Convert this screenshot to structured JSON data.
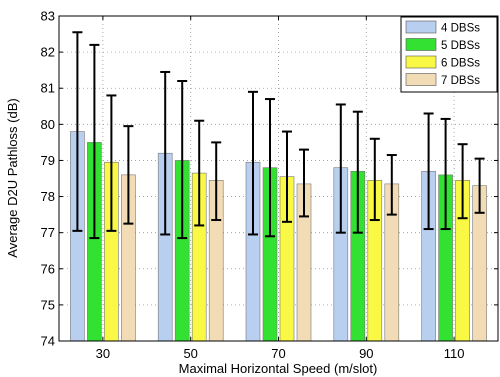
{
  "chart_data": {
    "type": "bar",
    "title": "",
    "xlabel": "Maximal Horizontal Speed (m/slot)",
    "ylabel": "Average D2U Pathloss (dB)",
    "categories": [
      "30",
      "50",
      "70",
      "90",
      "110"
    ],
    "ylim": [
      74,
      83
    ],
    "yticks": [
      74,
      75,
      76,
      77,
      78,
      79,
      80,
      81,
      82,
      83
    ],
    "grid": true,
    "legend_position": "top-right",
    "series": [
      {
        "name": "4 DBSs",
        "color": "#b9cff0",
        "values": [
          79.8,
          79.2,
          78.95,
          78.8,
          78.7
        ],
        "error_low": [
          77.05,
          76.95,
          76.95,
          77.0,
          77.1
        ],
        "error_high": [
          82.55,
          81.45,
          80.9,
          80.55,
          80.3
        ]
      },
      {
        "name": "5 DBSs",
        "color": "#33e133",
        "values": [
          79.5,
          79.0,
          78.8,
          78.7,
          78.6
        ],
        "error_low": [
          76.85,
          76.85,
          76.9,
          77.0,
          77.1
        ],
        "error_high": [
          82.2,
          81.2,
          80.7,
          80.35,
          80.15
        ]
      },
      {
        "name": "6 DBSs",
        "color": "#f8f845",
        "values": [
          78.95,
          78.65,
          78.55,
          78.45,
          78.45
        ],
        "error_low": [
          77.05,
          77.2,
          77.3,
          77.35,
          77.4
        ],
        "error_high": [
          80.8,
          80.1,
          79.8,
          79.6,
          79.45
        ]
      },
      {
        "name": "7 DBSs",
        "color": "#f2dcb6",
        "values": [
          78.6,
          78.45,
          78.35,
          78.35,
          78.3
        ],
        "error_low": [
          77.25,
          77.35,
          77.45,
          77.5,
          77.55
        ],
        "error_high": [
          79.95,
          79.5,
          79.3,
          79.15,
          79.05
        ]
      }
    ]
  }
}
